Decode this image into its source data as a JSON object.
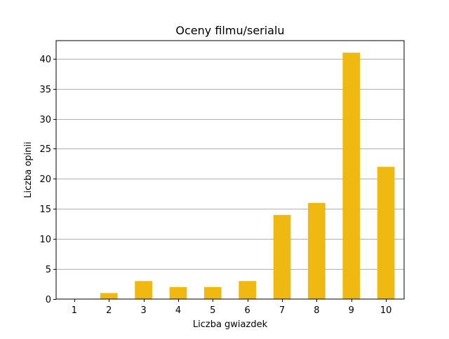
{
  "chart_data": {
    "type": "bar",
    "title": "Oceny filmu/serialu",
    "xlabel": "Liczba gwiazdek",
    "ylabel": "Liczba opinii",
    "categories": [
      "1",
      "2",
      "3",
      "4",
      "5",
      "6",
      "7",
      "8",
      "9",
      "10"
    ],
    "values": [
      0,
      1,
      3,
      2,
      2,
      3,
      14,
      16,
      41,
      22
    ],
    "ylim": [
      0,
      43
    ],
    "yticks": [
      0,
      5,
      10,
      15,
      20,
      25,
      30,
      35,
      40
    ],
    "grid": "horizontal",
    "bar_color": "#f0b912"
  }
}
